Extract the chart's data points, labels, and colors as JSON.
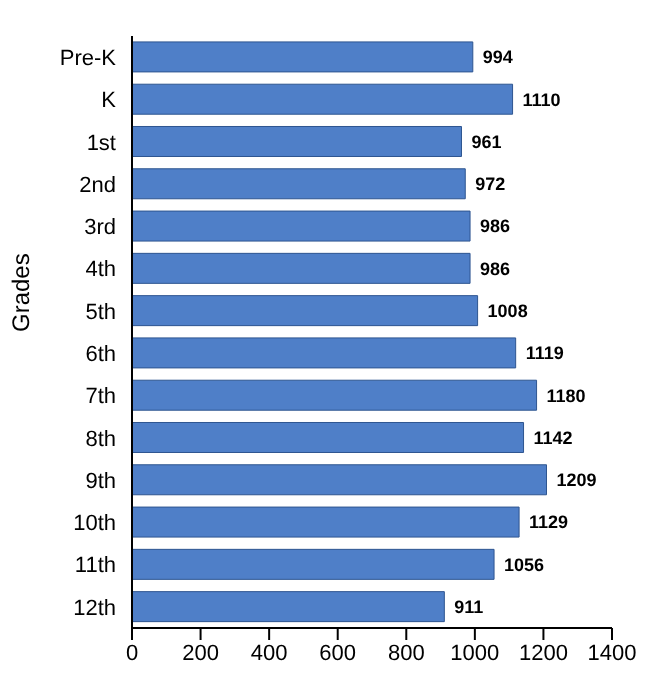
{
  "chart_data": {
    "type": "bar",
    "orientation": "horizontal",
    "ylabel": "Grades",
    "categories": [
      "Pre-K",
      "K",
      "1st",
      "2nd",
      "3rd",
      "4th",
      "5th",
      "6th",
      "7th",
      "8th",
      "9th",
      "10th",
      "11th",
      "12th"
    ],
    "values": [
      994,
      1110,
      961,
      972,
      986,
      986,
      1008,
      1119,
      1180,
      1142,
      1209,
      1129,
      1056,
      911
    ],
    "color": "#4f7fc8",
    "xlim": [
      0,
      1400
    ],
    "xticks": [
      0,
      200,
      400,
      600,
      800,
      1000,
      1200,
      1400
    ],
    "grid": false,
    "legend": false,
    "data_labels": true
  }
}
